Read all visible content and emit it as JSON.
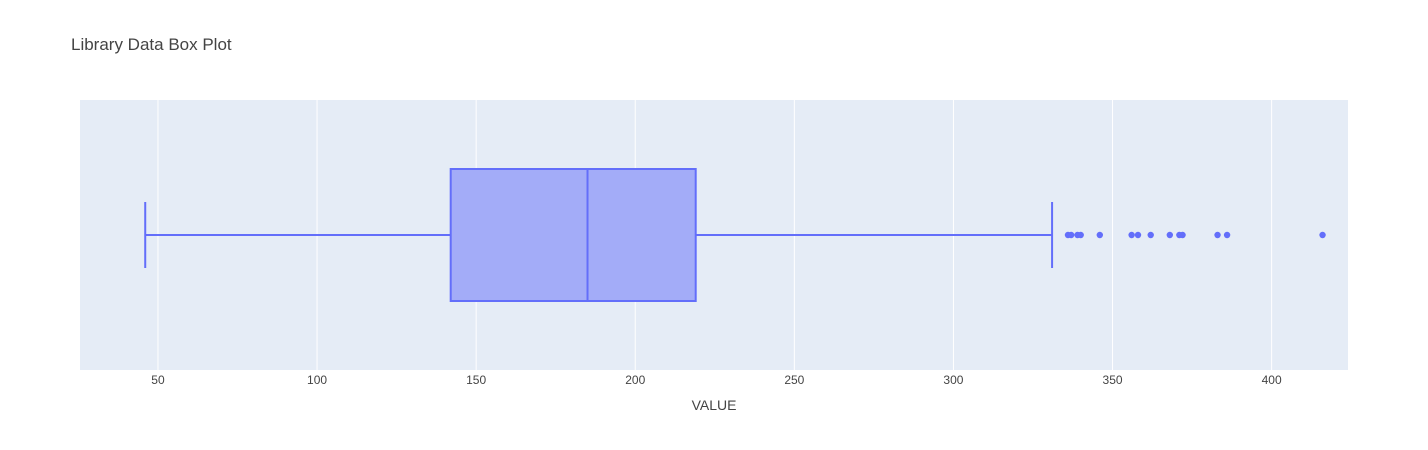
{
  "chart_data": {
    "type": "box",
    "title": "Library Data Box Plot",
    "xlabel": "VALUE",
    "ylabel": "",
    "xlim": [
      25.5,
      424
    ],
    "x_ticks": [
      50,
      100,
      150,
      200,
      250,
      300,
      350,
      400
    ],
    "x_tick_labels": [
      "50",
      "100",
      "150",
      "200",
      "250",
      "300",
      "350",
      "400"
    ],
    "grid": true,
    "orientation": "horizontal",
    "box": {
      "min_whisker": 46,
      "q1": 142,
      "median": 185,
      "q3": 219,
      "max_whisker": 331,
      "outliers": [
        336,
        337,
        339,
        340,
        346,
        356,
        358,
        362,
        368,
        371,
        372,
        383,
        386,
        416
      ]
    },
    "colors": {
      "plot_bg": "#e5ecf6",
      "grid": "#ffffff",
      "box_line": "#636efa",
      "box_fill": "#a3acf8"
    }
  }
}
